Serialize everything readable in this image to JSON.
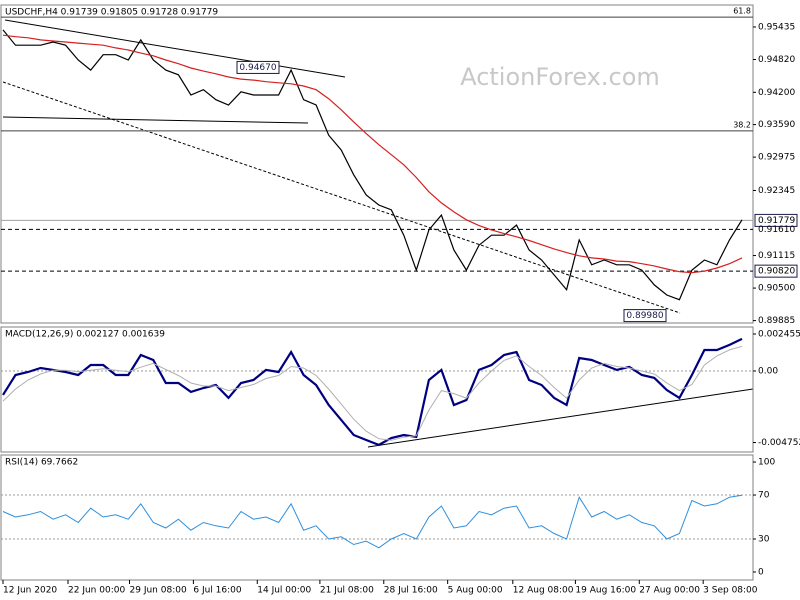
{
  "watermark": "ActionForex.com",
  "chart_data": [
    {
      "type": "line",
      "title": "USDCHF,H4  0.91739 0.91805 0.91728 0.91779",
      "ylim": [
        0.8984,
        0.9585
      ],
      "yticks": [
        0.95435,
        {
          "value": 0.9482,
          "label": "0.94820"
        },
        {
          "value": 0.942,
          "label": "0.94200"
        },
        {
          "value": 0.9359,
          "label": "0.93590"
        },
        0.92975,
        0.92345,
        0.91115,
        {
          "value": 0.905,
          "label": "0.90500"
        },
        0.89885
      ],
      "series": [
        {
          "color": "#000000",
          "width": 1.2,
          "values": [
            0.9538,
            0.9509,
            0.9509,
            0.9509,
            0.9515,
            0.9509,
            0.9481,
            0.9462,
            0.9491,
            0.9491,
            0.9481,
            0.9519,
            0.9481,
            0.9462,
            0.9453,
            0.9415,
            0.9425,
            0.9406,
            0.9396,
            0.9421,
            0.9415,
            0.9415,
            0.9415,
            0.9462,
            0.9406,
            0.9396,
            0.9339,
            0.9311,
            0.9264,
            0.9226,
            0.9207,
            0.9198,
            0.915,
            0.9084,
            0.916,
            0.9188,
            0.9122,
            0.9084,
            0.9131,
            0.915,
            0.915,
            0.9169,
            0.9122,
            0.9103,
            0.9075,
            0.9047,
            0.9141,
            0.9094,
            0.9103,
            0.9094,
            0.9094,
            0.9084,
            0.9056,
            0.9037,
            0.9028,
            0.9084,
            0.9103,
            0.9094,
            0.9141,
            0.9179
          ]
        },
        {
          "color": "#d62020",
          "width": 1.2,
          "values": [
            0.9528,
            0.9525,
            0.9523,
            0.9519,
            0.9517,
            0.9515,
            0.9513,
            0.9511,
            0.9509,
            0.9504,
            0.95,
            0.9494,
            0.9489,
            0.9481,
            0.9474,
            0.9466,
            0.946,
            0.9455,
            0.9449,
            0.9445,
            0.9443,
            0.944,
            0.9438,
            0.9436,
            0.9432,
            0.9425,
            0.9408,
            0.9387,
            0.9364,
            0.9342,
            0.9321,
            0.9302,
            0.9283,
            0.9259,
            0.9232,
            0.9211,
            0.9194,
            0.9179,
            0.9168,
            0.916,
            0.9153,
            0.9147,
            0.914,
            0.9132,
            0.9124,
            0.9117,
            0.9111,
            0.9107,
            0.9105,
            0.9101,
            0.91,
            0.9096,
            0.9092,
            0.9086,
            0.9081,
            0.9079,
            0.9082,
            0.9088,
            0.9096,
            0.9107
          ]
        }
      ],
      "fib_levels": [
        {
          "price": 0.9562,
          "ratio": 61.8
        },
        {
          "price": 0.9347,
          "ratio": 38.2
        }
      ],
      "levels": [
        {
          "value": 0.91779,
          "label": "0.91779",
          "style": "solid",
          "boxed": true
        },
        {
          "value": 0.9161,
          "label": "0.91610",
          "style": "dashed",
          "boxed": false
        },
        {
          "value": 0.9082,
          "label": "0.90820",
          "style": "dashed",
          "boxed": true
        }
      ],
      "annotations": [
        {
          "value": 0.9467,
          "label": "0.94670"
        },
        {
          "value": 0.8998,
          "label": "0.89980"
        }
      ]
    },
    {
      "type": "line",
      "title": "MACD(12,26,9) 0.002127 0.001639",
      "ylim": [
        -0.00538,
        0.00292
      ],
      "yticks": [
        0.002455,
        {
          "value": 0,
          "label": "0.00"
        },
        -0.004752
      ],
      "levels": [
        0
      ],
      "series": [
        {
          "color": "#000080",
          "width": 2.2,
          "values": [
            -0.00159,
            -0.00027,
            -7e-05,
            0.0002,
            7e-05,
            -7e-05,
            -0.00027,
            0.0004,
            0.0004,
            -0.00027,
            -0.00027,
            0.00106,
            0.00073,
            -0.0008,
            -0.0008,
            -0.00139,
            -0.00113,
            -0.00093,
            -0.00179,
            -0.0008,
            -0.0006,
            7e-05,
            -7e-05,
            0.00126,
            -0.00027,
            -0.00093,
            -0.00226,
            -0.00325,
            -0.00425,
            -0.00458,
            -0.00491,
            -0.00445,
            -0.00425,
            -0.00438,
            -0.0006,
            7e-05,
            -0.00226,
            -0.00193,
            7e-05,
            0.0004,
            0.00106,
            0.00126,
            -0.0006,
            -0.00093,
            -0.00179,
            -0.00226,
            0.00086,
            0.00073,
            0.0004,
            7e-05,
            0.00027,
            -0.00027,
            -0.00046,
            -0.00126,
            -0.00179,
            -0.00027,
            0.00139,
            0.00139,
            0.00173,
            0.002127
          ]
        },
        {
          "color": "#b0b0b0",
          "width": 1,
          "values": [
            -0.002,
            -0.0012,
            -0.0006,
            -0.0002,
            5e-05,
            5e-05,
            -5e-05,
            5e-05,
            0.00015,
            5e-05,
            -5e-05,
            0.00025,
            0.0005,
            0.0001,
            -0.0003,
            -0.0008,
            -0.001,
            -0.001,
            -0.0013,
            -0.0011,
            -0.0009,
            -0.0005,
            -0.0003,
            0.0003,
            0.0002,
            -0.0003,
            -0.0012,
            -0.0022,
            -0.0032,
            -0.004,
            -0.0045,
            -0.0046,
            -0.0044,
            -0.0043,
            -0.0026,
            -0.0013,
            -0.0015,
            -0.0018,
            -0.0008,
            0,
            0.0007,
            0.001,
            0.0003,
            -0.0003,
            -0.0011,
            -0.0018,
            -0.0006,
            0.0002,
            0.0005,
            0.0003,
            0.0002,
            0,
            -0.0002,
            -0.0008,
            -0.0013,
            -0.0009,
            0.0004,
            0.001,
            0.0014,
            0.001639
          ]
        }
      ]
    },
    {
      "type": "line",
      "title": "RSI(14) 69.7662",
      "ylim": [
        -7.3,
        106.4
      ],
      "yticks": [
        100,
        70,
        30,
        0
      ],
      "levels": [
        70,
        30
      ],
      "xlim": [
        0,
        59
      ],
      "xticks": [
        {
          "value": 0,
          "label": "12 Jun 2020"
        },
        {
          "value": 5.19,
          "label": "22 Jun 00:00"
        },
        {
          "value": 10.1,
          "label": "29 Jun 08:00"
        },
        {
          "value": 15.2,
          "label": "6 Jul 16:00"
        },
        {
          "value": 20.3,
          "label": "14 Jul 00:00"
        },
        {
          "value": 25.3,
          "label": "21 Jul 08:00"
        },
        {
          "value": 30.4,
          "label": "28 Jul 16:00"
        },
        {
          "value": 35.5,
          "label": "5 Aug 00:00"
        },
        {
          "value": 40.7,
          "label": "12 Aug 08:00"
        },
        {
          "value": 45.7,
          "label": "19 Aug 16:00"
        },
        {
          "value": 50.8,
          "label": "27 Aug 00:00"
        },
        {
          "value": 55.9,
          "label": "3 Sep 08:00"
        }
      ],
      "series": [
        {
          "color": "#2f8fdc",
          "width": 1,
          "values": [
            55,
            50,
            52,
            55,
            48,
            52,
            45,
            58,
            50,
            52,
            48,
            62,
            45,
            40,
            48,
            38,
            45,
            42,
            40,
            55,
            48,
            50,
            45,
            62,
            38,
            42,
            30,
            32,
            25,
            28,
            22,
            30,
            35,
            30,
            50,
            60,
            40,
            42,
            55,
            52,
            58,
            60,
            40,
            42,
            35,
            30,
            68,
            50,
            55,
            48,
            52,
            45,
            42,
            30,
            35,
            65,
            60,
            62,
            68,
            69.7662
          ]
        }
      ]
    }
  ]
}
